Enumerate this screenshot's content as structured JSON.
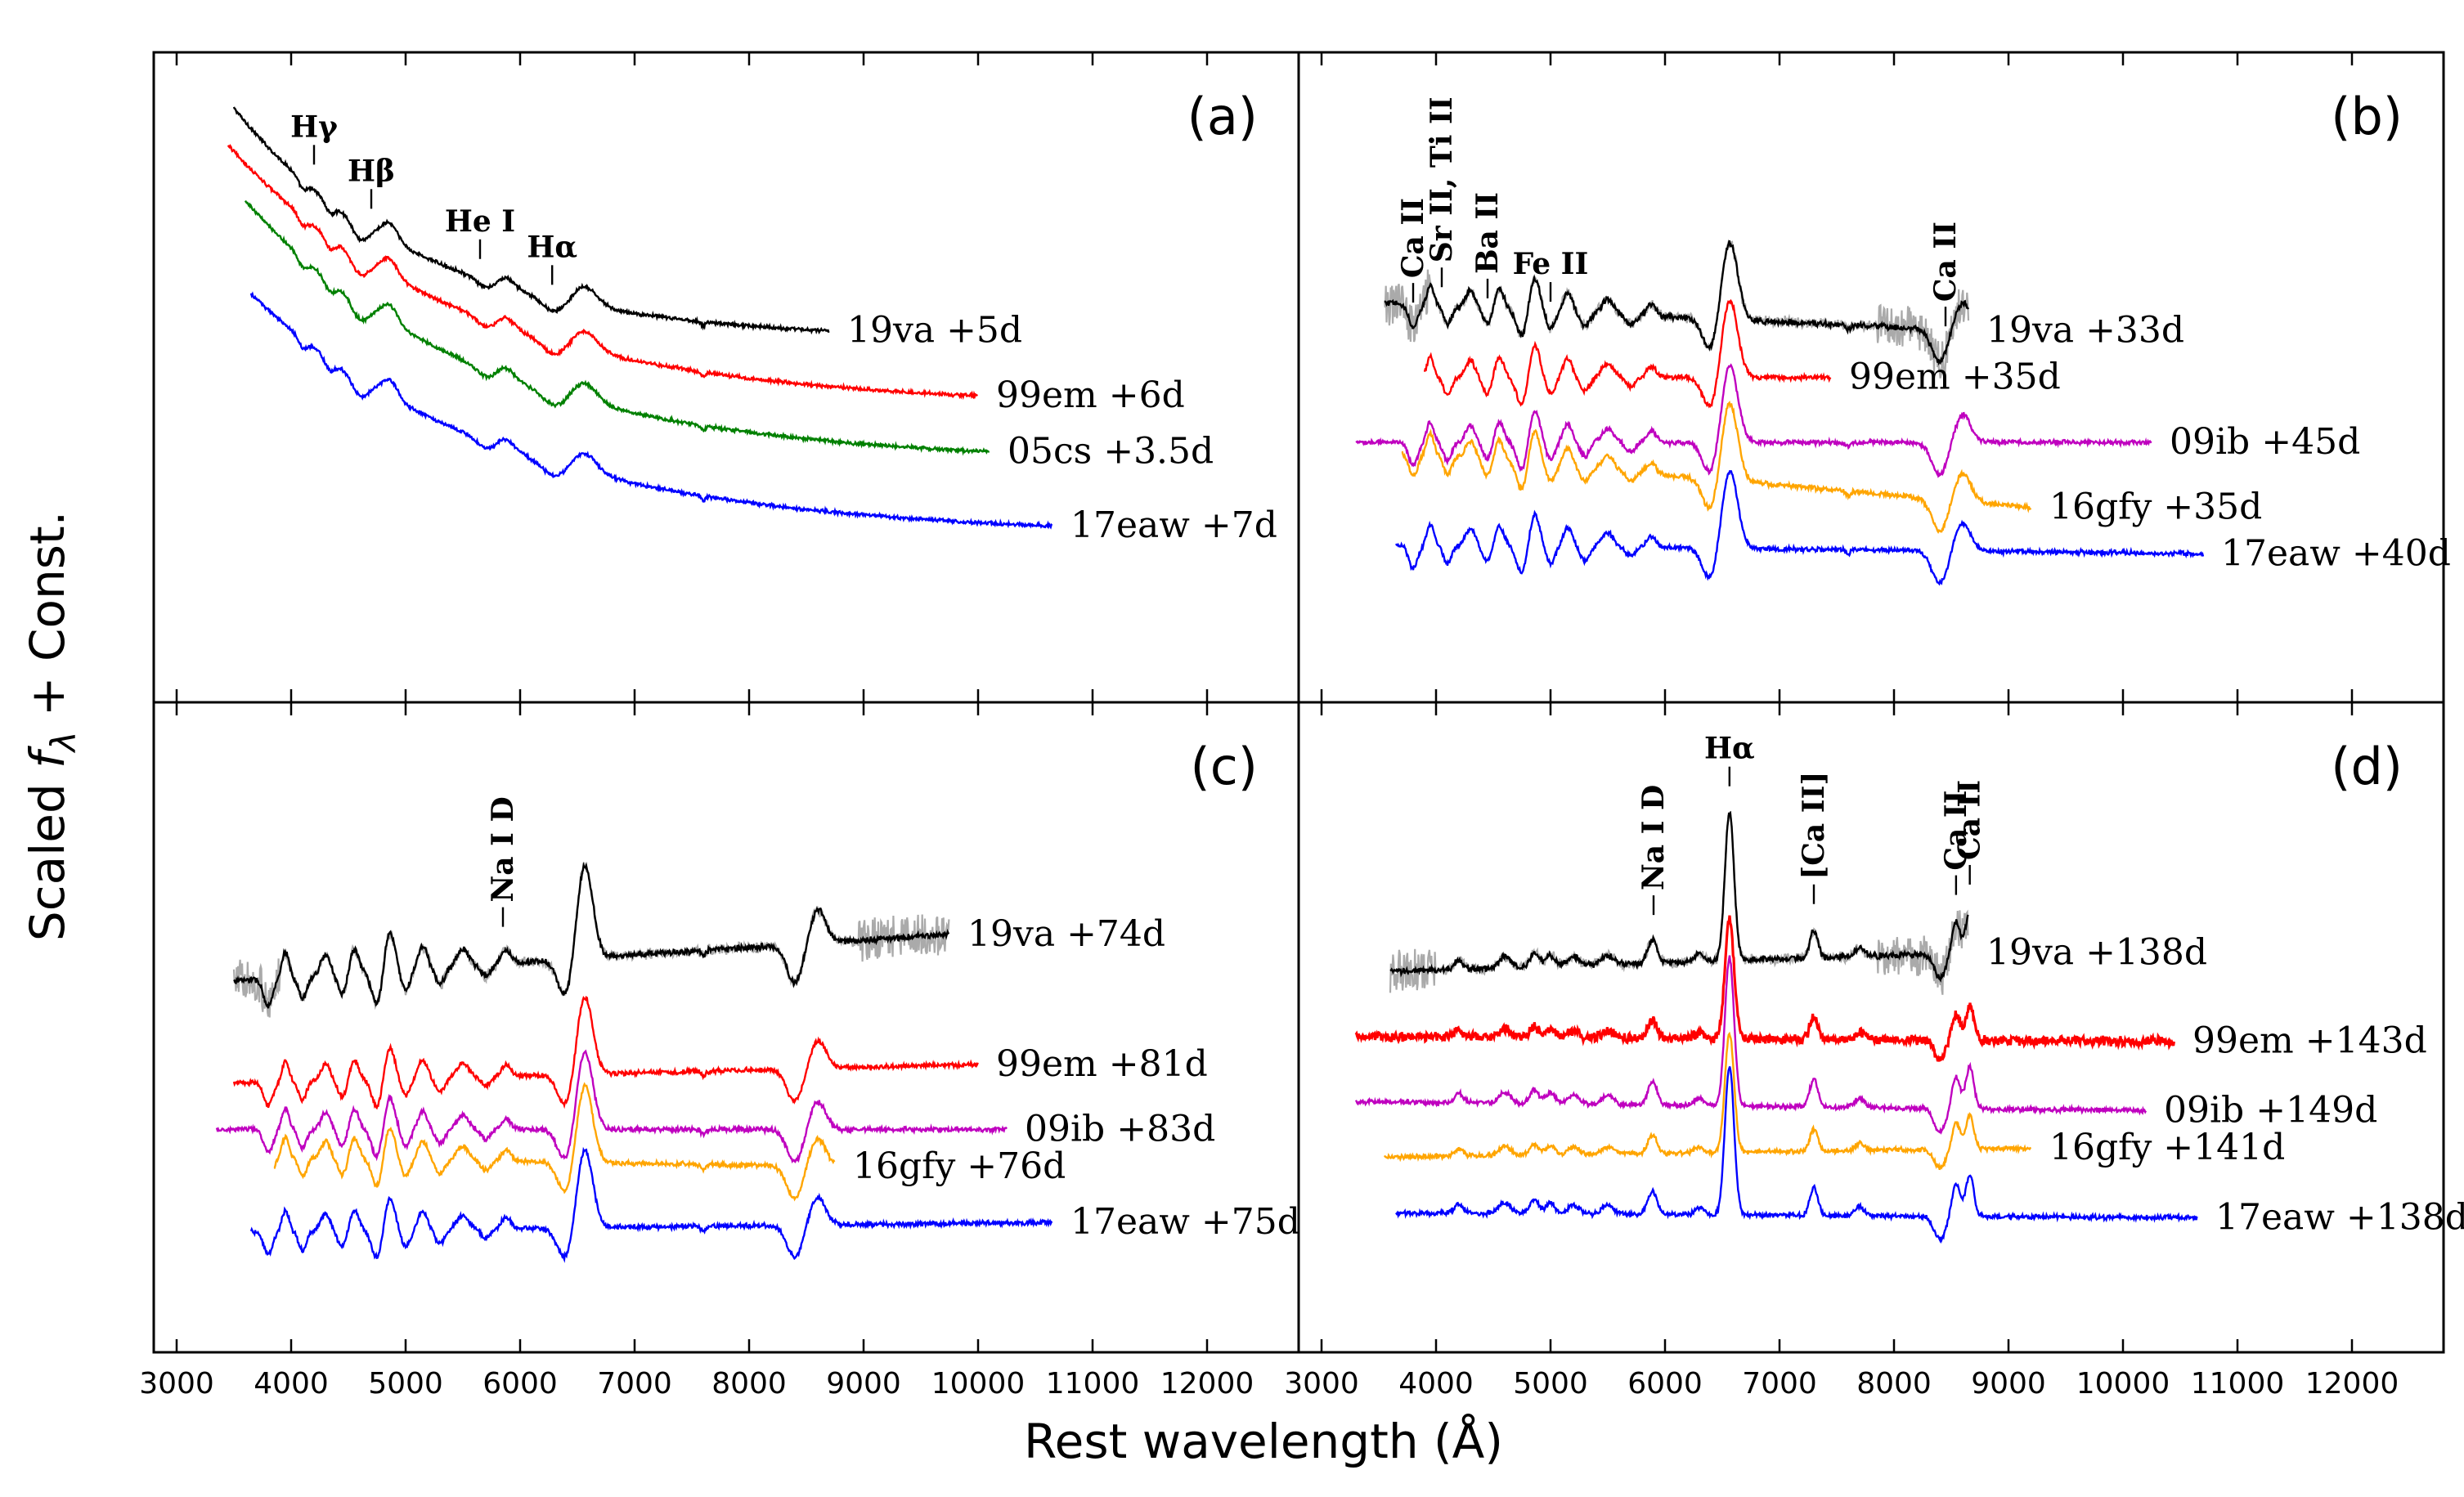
{
  "figure": {
    "ylabel_prefix": "Scaled ",
    "ylabel_var": "f",
    "ylabel_sub": "λ",
    "ylabel_suffix": " + Const.",
    "xlabel": "Rest wavelength (Å)"
  },
  "chart_data": {
    "type": "line",
    "xlim": [
      2800,
      12800
    ],
    "xticks": [
      3000,
      4000,
      5000,
      6000,
      7000,
      8000,
      9000,
      10000,
      11000,
      12000
    ],
    "xtick_labels": [
      "3000",
      "4000",
      "5000",
      "6000",
      "7000",
      "8000",
      "9000",
      "10000",
      "11000",
      "12000"
    ],
    "colors": {
      "19va": "#000000",
      "99em": "#ff0000",
      "05cs": "#008000",
      "09ib": "#bf00bf",
      "16gfy": "#ffa500",
      "17eaw": "#0000ff",
      "noise": "#aaaaaa"
    },
    "panels": [
      {
        "id": "a",
        "panel_label": "(a)",
        "series": [
          {
            "name": "19va",
            "label": "19va +5d",
            "color": "#000000",
            "x_range": [
              3500,
              8700
            ],
            "start_offset": 8.9,
            "end_offset": 6.5
          },
          {
            "name": "99em",
            "label": "99em +6d",
            "color": "#ff0000",
            "x_range": [
              3450,
              10000
            ],
            "start_offset": 8.5,
            "end_offset": 5.8
          },
          {
            "name": "05cs",
            "label": "05cs +3.5d",
            "color": "#008000",
            "x_range": [
              3600,
              10100
            ],
            "start_offset": 7.9,
            "end_offset": 5.2
          },
          {
            "name": "17eaw",
            "label": "17eaw +7d",
            "color": "#0000ff",
            "x_range": [
              3650,
              10650
            ],
            "start_offset": 6.9,
            "end_offset": 4.4
          }
        ],
        "line_ids": [
          {
            "label": "Hγ",
            "x": 4200
          },
          {
            "label": "Hβ",
            "x": 4700
          },
          {
            "label": "He I",
            "x": 5650
          },
          {
            "label": "Hα",
            "x": 6280
          }
        ]
      },
      {
        "id": "b",
        "panel_label": "(b)",
        "series": [
          {
            "name": "19va",
            "label": "19va +33d",
            "color": "#000000",
            "x_range": [
              3550,
              8650
            ],
            "start_offset": 6.8,
            "end_offset": 6.5
          },
          {
            "name": "99em",
            "label": "99em +35d",
            "color": "#ff0000",
            "x_range": [
              3900,
              7450
            ],
            "start_offset": 6.0,
            "end_offset": 6.0
          },
          {
            "name": "09ib",
            "label": "09ib +45d",
            "color": "#bf00bf",
            "x_range": [
              3300,
              10250
            ],
            "start_offset": 5.3,
            "end_offset": 5.3
          },
          {
            "name": "16gfy",
            "label": "16gfy +35d",
            "color": "#ffa500",
            "x_range": [
              3700,
              9200
            ],
            "start_offset": 5.2,
            "end_offset": 4.6
          },
          {
            "name": "17eaw",
            "label": "17eaw +40d",
            "color": "#0000ff",
            "x_range": [
              3650,
              10700
            ],
            "start_offset": 4.2,
            "end_offset": 4.1
          }
        ],
        "line_ids": [
          {
            "label": "Ca II",
            "x": 3800
          },
          {
            "label": "Sr II, Ti II",
            "x": 4050
          },
          {
            "label": "Ba II",
            "x": 4450
          },
          {
            "label": "Fe II",
            "x": 5000
          },
          {
            "label": "Ca II",
            "x": 8450
          }
        ]
      },
      {
        "id": "c",
        "panel_label": "(c)",
        "series": [
          {
            "name": "19va",
            "label": "19va +74d",
            "color": "#000000",
            "x_range": [
              3500,
              9750
            ],
            "start_offset": 6.5,
            "end_offset": 7.0
          },
          {
            "name": "99em",
            "label": "99em +81d",
            "color": "#ff0000",
            "x_range": [
              3500,
              10000
            ],
            "start_offset": 5.4,
            "end_offset": 5.6
          },
          {
            "name": "09ib",
            "label": "09ib +83d",
            "color": "#bf00bf",
            "x_range": [
              3350,
              10250
            ],
            "start_offset": 4.9,
            "end_offset": 4.9
          },
          {
            "name": "16gfy",
            "label": "16gfy +76d",
            "color": "#ffa500",
            "x_range": [
              3850,
              8750
            ],
            "start_offset": 4.6,
            "end_offset": 4.5
          },
          {
            "name": "17eaw",
            "label": "17eaw +75d",
            "color": "#0000ff",
            "x_range": [
              3650,
              10650
            ],
            "start_offset": 3.8,
            "end_offset": 3.9
          }
        ],
        "line_ids": [
          {
            "label": "Na I D",
            "x": 5850
          }
        ]
      },
      {
        "id": "d",
        "panel_label": "(d)",
        "series": [
          {
            "name": "19va",
            "label": "19va +138d",
            "color": "#000000",
            "x_range": [
              3600,
              8650
            ],
            "start_offset": 6.6,
            "end_offset": 6.8
          },
          {
            "name": "99em",
            "label": "99em +143d",
            "color": "#ff0000",
            "x_range": [
              3300,
              10450
            ],
            "start_offset": 5.9,
            "end_offset": 5.85
          },
          {
            "name": "09ib",
            "label": "09ib +149d",
            "color": "#bf00bf",
            "x_range": [
              3300,
              10200
            ],
            "start_offset": 5.2,
            "end_offset": 5.1
          },
          {
            "name": "16gfy",
            "label": "16gfy +141d",
            "color": "#ffa500",
            "x_range": [
              3550,
              9200
            ],
            "start_offset": 4.6,
            "end_offset": 4.7
          },
          {
            "name": "17eaw",
            "label": "17eaw +138d",
            "color": "#0000ff",
            "x_range": [
              3650,
              10650
            ],
            "start_offset": 4.0,
            "end_offset": 3.95
          }
        ],
        "line_ids": [
          {
            "label": "Na I D",
            "x": 5900
          },
          {
            "label": "Hα",
            "x": 6563
          },
          {
            "label": "[Ca II]",
            "x": 7300
          },
          {
            "label": "Ca II",
            "x": 8542
          },
          {
            "label": "Ca II",
            "x": 8662
          }
        ]
      }
    ]
  }
}
